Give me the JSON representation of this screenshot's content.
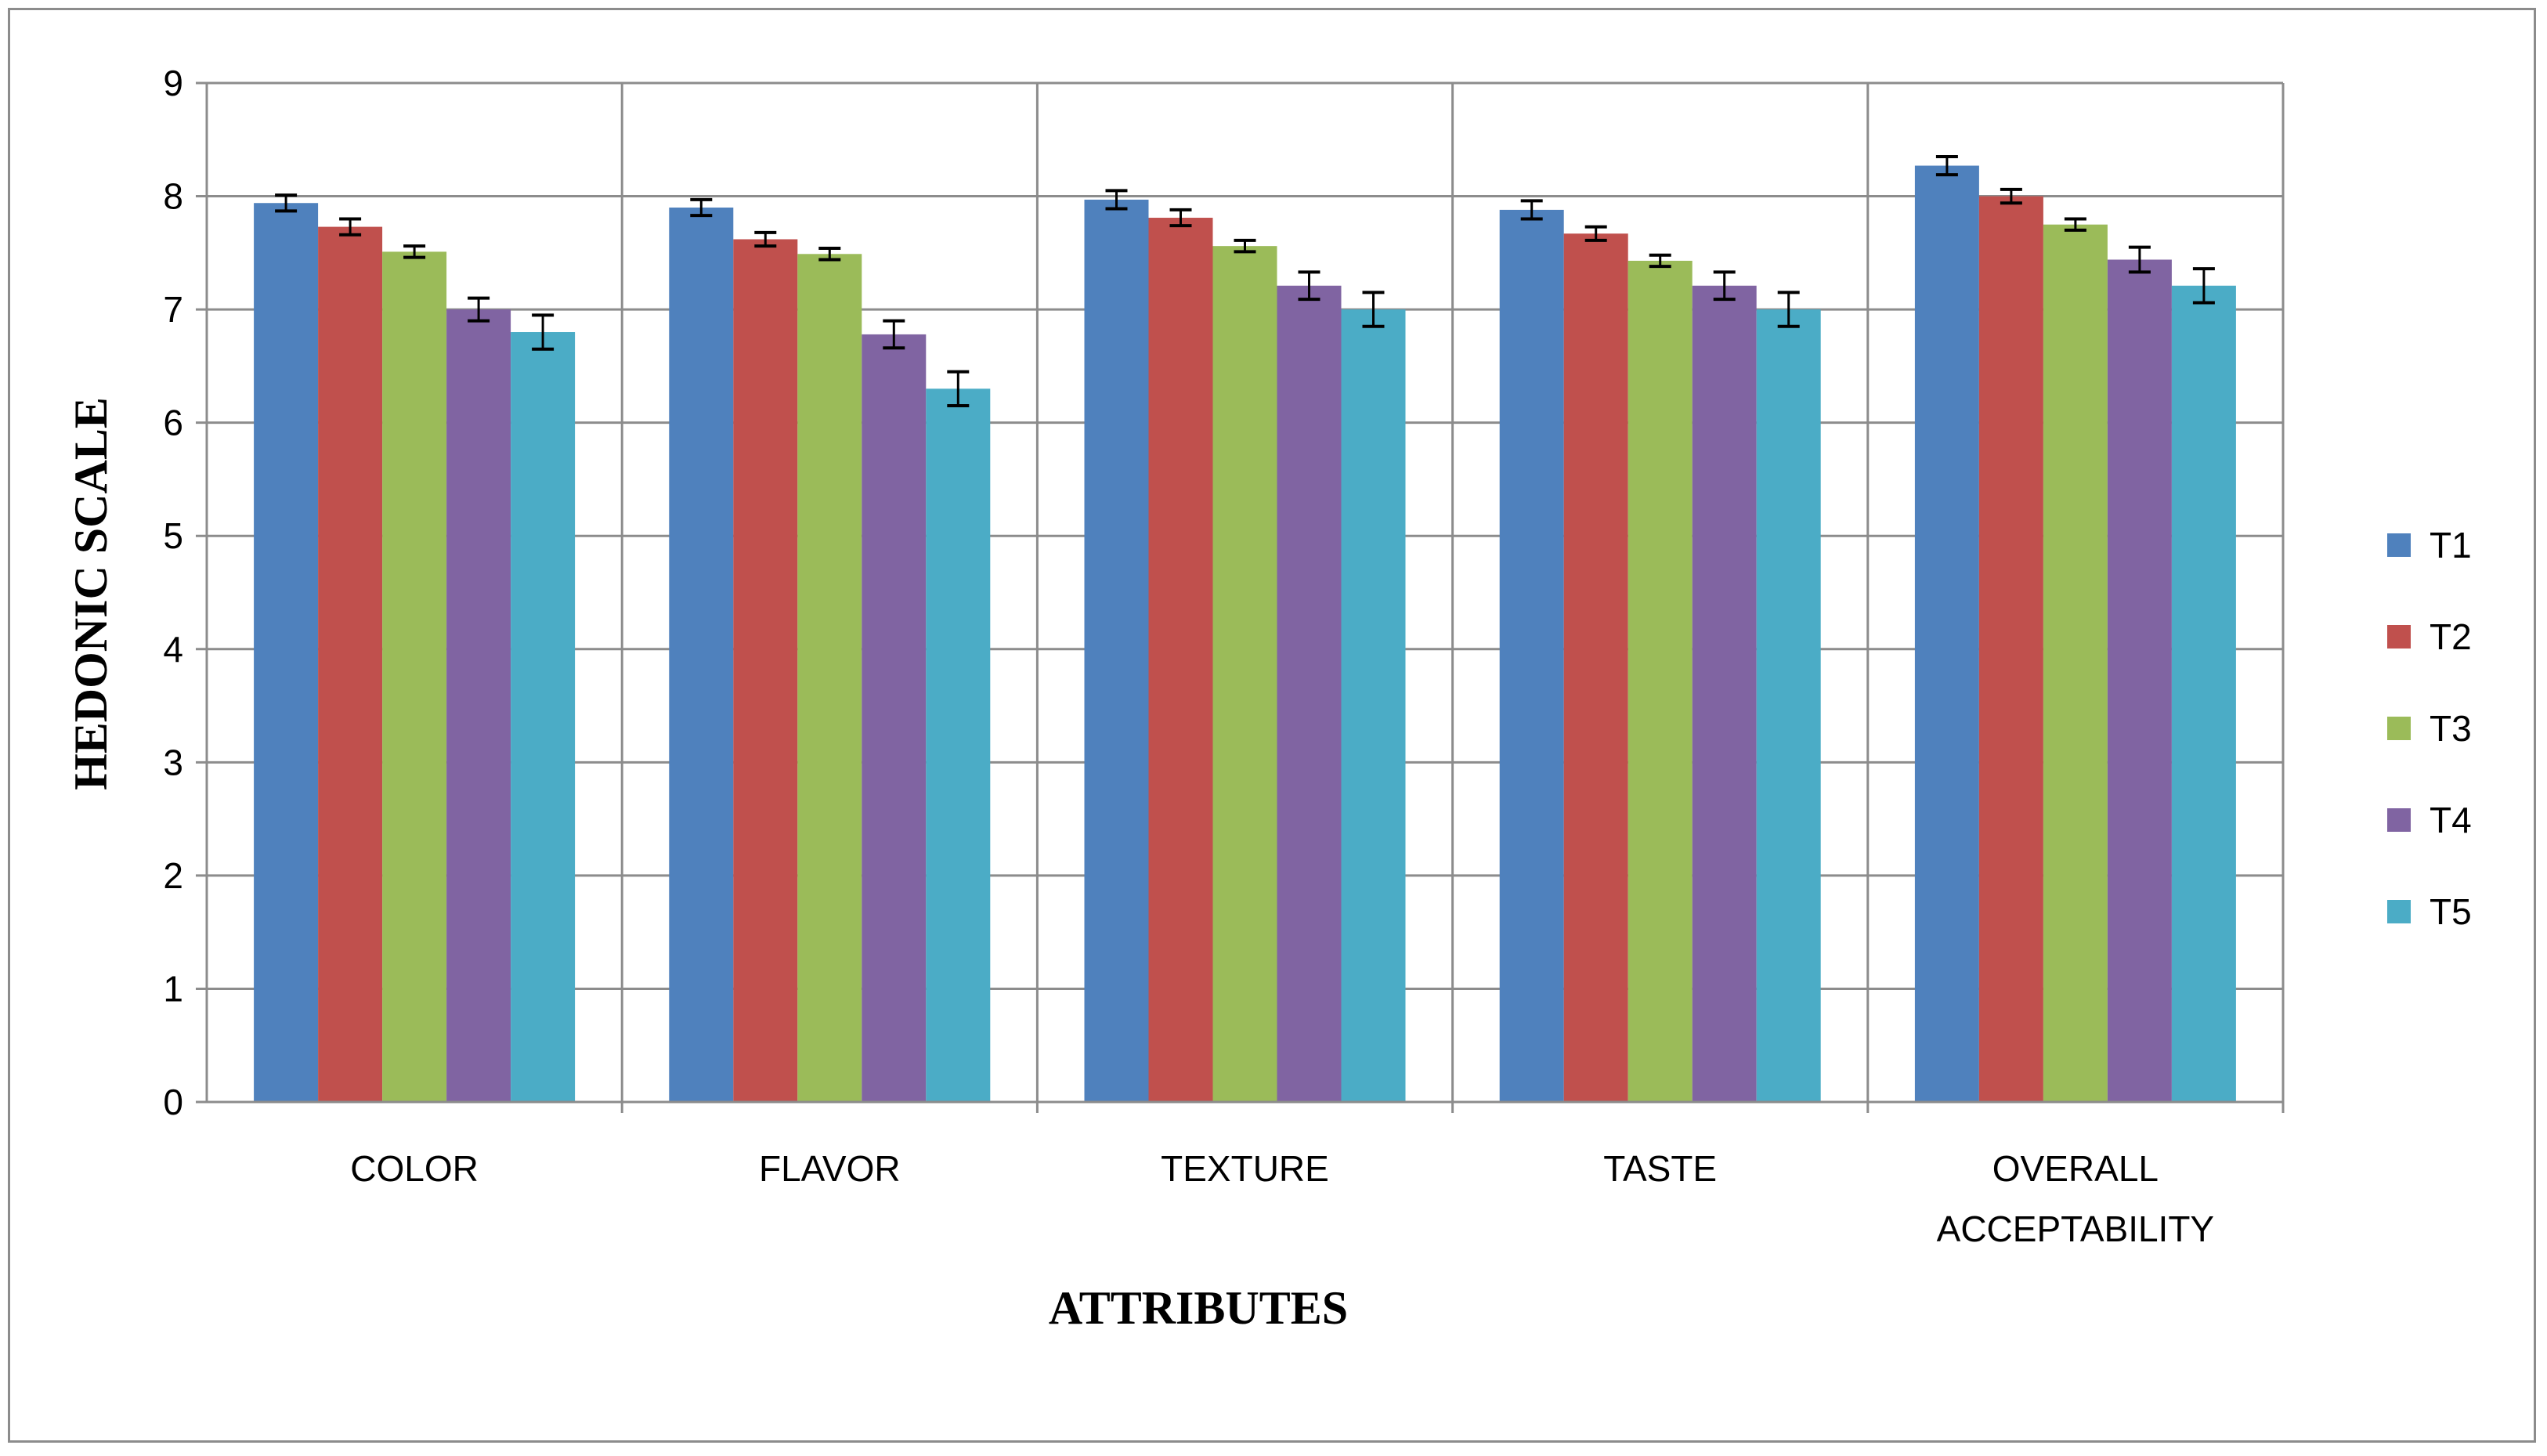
{
  "chart_data": {
    "type": "bar",
    "xlabel": "ATTRIBUTES",
    "ylabel": "HEDONIC SCALE",
    "ylim": [
      0,
      9
    ],
    "yticks": [
      0,
      1,
      2,
      3,
      4,
      5,
      6,
      7,
      8,
      9
    ],
    "grid": true,
    "legend_position": "right",
    "categories": [
      "COLOR",
      "FLAVOR",
      "TEXTURE",
      "TASTE",
      "OVERALL ACCEPTABILITY"
    ],
    "category_label_lines": [
      [
        "COLOR"
      ],
      [
        "FLAVOR"
      ],
      [
        "TEXTURE"
      ],
      [
        "TASTE"
      ],
      [
        "OVERALL",
        "ACCEPTABILITY"
      ]
    ],
    "series": [
      {
        "name": "T1",
        "color": "#4f81bd",
        "values": [
          7.94,
          7.9,
          7.97,
          7.88,
          8.27
        ],
        "errors": [
          0.07,
          0.07,
          0.08,
          0.08,
          0.08
        ]
      },
      {
        "name": "T2",
        "color": "#c0504d",
        "values": [
          7.73,
          7.62,
          7.81,
          7.67,
          8.0
        ],
        "errors": [
          0.07,
          0.06,
          0.07,
          0.06,
          0.06
        ]
      },
      {
        "name": "T3",
        "color": "#9bbb59",
        "values": [
          7.51,
          7.49,
          7.56,
          7.43,
          7.75
        ],
        "errors": [
          0.05,
          0.05,
          0.05,
          0.05,
          0.05
        ]
      },
      {
        "name": "T4",
        "color": "#8064a2",
        "values": [
          7.0,
          6.78,
          7.21,
          7.21,
          7.44
        ],
        "errors": [
          0.1,
          0.12,
          0.12,
          0.12,
          0.11
        ]
      },
      {
        "name": "T5",
        "color": "#4bacc6",
        "values": [
          6.8,
          6.3,
          7.0,
          7.0,
          7.21
        ],
        "errors": [
          0.15,
          0.15,
          0.15,
          0.15,
          0.15
        ]
      }
    ]
  }
}
